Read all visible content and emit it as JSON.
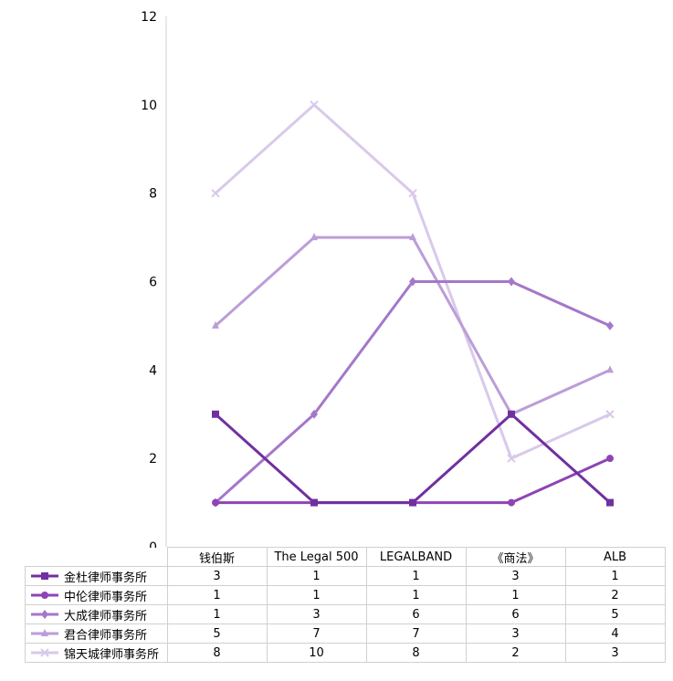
{
  "chart_data": {
    "type": "line",
    "categories": [
      "钱伯斯",
      "The Legal 500",
      "LEGALBAND",
      "《商法》",
      "ALB"
    ],
    "ylim": [
      0,
      12
    ],
    "yticks": [
      0,
      2,
      4,
      6,
      8,
      10,
      12
    ],
    "grid": false,
    "legend": "data-table",
    "series": [
      {
        "name": "金杜律师事务所",
        "values": [
          3,
          1,
          1,
          3,
          1
        ],
        "color": "#7030a0",
        "marker": "square"
      },
      {
        "name": "中伦律师事务所",
        "values": [
          1,
          1,
          1,
          1,
          2
        ],
        "color": "#8e44b5",
        "marker": "circle"
      },
      {
        "name": "大成律师事务所",
        "values": [
          1,
          3,
          6,
          6,
          5
        ],
        "color": "#a577c9",
        "marker": "diamond"
      },
      {
        "name": "君合律师事务所",
        "values": [
          5,
          7,
          7,
          3,
          4
        ],
        "color": "#bc9dd8",
        "marker": "triangle"
      },
      {
        "name": "锦天城律师事务所",
        "values": [
          8,
          10,
          8,
          2,
          3
        ],
        "color": "#d9c9ea",
        "marker": "x"
      }
    ]
  }
}
